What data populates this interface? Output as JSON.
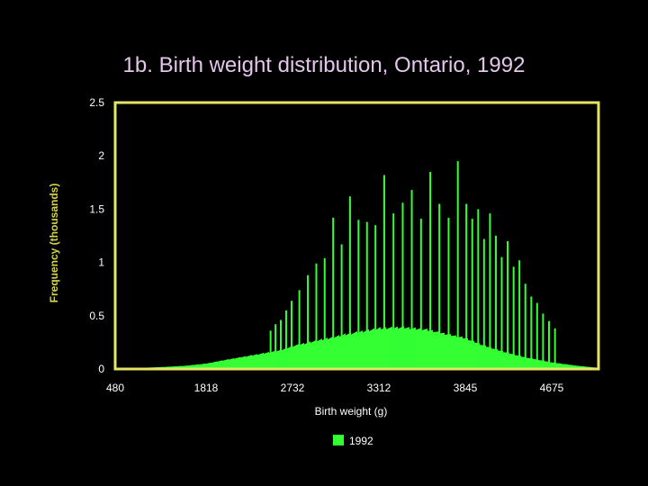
{
  "colors": {
    "background": "#000000",
    "title": "#e3c6ea",
    "axis_frame": "#e5e563",
    "series": "#33ff33",
    "tick_labels": "#ffffff",
    "ylabel": "#d4d44a"
  },
  "chart_data": {
    "type": "bar",
    "title": "1b. Birth weight distribution, Ontario, 1992",
    "xlabel": "Birth weight (g)",
    "ylabel": "Frequency (thousands)",
    "xlim": [
      480,
      5100
    ],
    "ylim": [
      0,
      2.5
    ],
    "grid": false,
    "legend_position": "bottom-center",
    "y_ticks": [
      "0",
      "0.5",
      "1",
      "1.5",
      "2",
      "2.5"
    ],
    "x_ticks": [
      {
        "value": 480,
        "label": "480"
      },
      {
        "value": 1818,
        "label": "1818"
      },
      {
        "value": 2732,
        "label": "2732"
      },
      {
        "value": 3312,
        "label": "3312"
      },
      {
        "value": 3845,
        "label": "3845"
      },
      {
        "value": 4675,
        "label": "4675"
      }
    ],
    "series": [
      {
        "name": "1992",
        "base_profile": [
          [
            480,
            0.01
          ],
          [
            800,
            0.01
          ],
          [
            1200,
            0.02
          ],
          [
            1500,
            0.03
          ],
          [
            1818,
            0.05
          ],
          [
            2000,
            0.08
          ],
          [
            2200,
            0.11
          ],
          [
            2400,
            0.14
          ],
          [
            2600,
            0.17
          ],
          [
            2732,
            0.21
          ],
          [
            2900,
            0.26
          ],
          [
            3100,
            0.32
          ],
          [
            3312,
            0.37
          ],
          [
            3450,
            0.38
          ],
          [
            3600,
            0.36
          ],
          [
            3845,
            0.28
          ],
          [
            4000,
            0.22
          ],
          [
            4200,
            0.16
          ],
          [
            4400,
            0.11
          ],
          [
            4675,
            0.06
          ],
          [
            4900,
            0.03
          ],
          [
            5100,
            0.01
          ]
        ],
        "spikes": [
          [
            2500,
            0.36
          ],
          [
            2552,
            0.42
          ],
          [
            2608,
            0.46
          ],
          [
            2665,
            0.55
          ],
          [
            2722,
            0.64
          ],
          [
            2778,
            0.74
          ],
          [
            2835,
            0.88
          ],
          [
            2892,
            0.99
          ],
          [
            2948,
            1.04
          ],
          [
            3005,
            1.42
          ],
          [
            3062,
            1.17
          ],
          [
            3118,
            1.62
          ],
          [
            3175,
            1.4
          ],
          [
            3232,
            1.38
          ],
          [
            3289,
            1.35
          ],
          [
            3345,
            1.82
          ],
          [
            3402,
            1.46
          ],
          [
            3459,
            1.56
          ],
          [
            3515,
            1.68
          ],
          [
            3572,
            1.41
          ],
          [
            3629,
            1.85
          ],
          [
            3685,
            1.55
          ],
          [
            3742,
            1.42
          ],
          [
            3799,
            1.95
          ],
          [
            3855,
            1.55
          ],
          [
            3912,
            1.41
          ],
          [
            3969,
            1.5
          ],
          [
            4025,
            1.22
          ],
          [
            4082,
            1.46
          ],
          [
            4139,
            1.25
          ],
          [
            4195,
            1.05
          ],
          [
            4252,
            1.2
          ],
          [
            4309,
            0.96
          ],
          [
            4365,
            1.02
          ],
          [
            4422,
            0.8
          ],
          [
            4479,
            0.68
          ],
          [
            4535,
            0.62
          ],
          [
            4592,
            0.52
          ],
          [
            4649,
            0.45
          ],
          [
            4705,
            0.38
          ]
        ]
      }
    ]
  }
}
